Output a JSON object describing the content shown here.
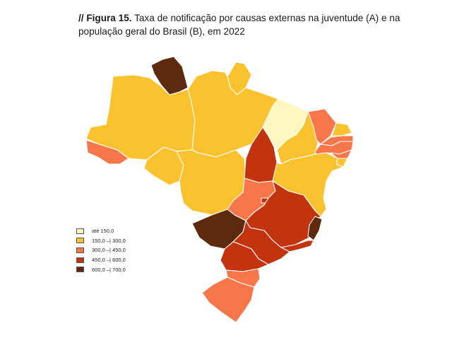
{
  "figure": {
    "label": "// Figura 15.",
    "title": "Taxa de notificação por causas externas na juventude (A) e na população geral do Brasil (B), em 2022"
  },
  "legend": [
    {
      "label": "até 150,0",
      "color": "#fff7bf"
    },
    {
      "label": "150,0 –| 300,0",
      "color": "#f9c22e"
    },
    {
      "label": "300,0 –| 450,0",
      "color": "#f7774a"
    },
    {
      "label": "450,0 –| 600,0",
      "color": "#c3330e"
    },
    {
      "label": "600,0 –| 700,0",
      "color": "#5e2a0e"
    }
  ],
  "states": [
    {
      "name": "AM",
      "class": "150,0 –| 300,0"
    },
    {
      "name": "RR",
      "class": "600,0 –| 700,0"
    },
    {
      "name": "AP",
      "class": "150,0 –| 300,0"
    },
    {
      "name": "PA",
      "class": "150,0 –| 300,0"
    },
    {
      "name": "AC",
      "class": "300,0 –| 450,0"
    },
    {
      "name": "RO",
      "class": "150,0 –| 300,0"
    },
    {
      "name": "MT",
      "class": "150,0 –| 300,0"
    },
    {
      "name": "MA",
      "class": "até 150,0"
    },
    {
      "name": "TO",
      "class": "450,0 –| 600,0"
    },
    {
      "name": "PI",
      "class": "150,0 –| 300,0"
    },
    {
      "name": "CE",
      "class": "300,0 –| 450,0"
    },
    {
      "name": "RN",
      "class": "150,0 –| 300,0"
    },
    {
      "name": "PB",
      "class": "300,0 –| 450,0"
    },
    {
      "name": "PE",
      "class": "300,0 –| 450,0"
    },
    {
      "name": "AL",
      "class": "300,0 –| 450,0"
    },
    {
      "name": "SE",
      "class": "150,0 –| 300,0"
    },
    {
      "name": "BA",
      "class": "150,0 –| 300,0"
    },
    {
      "name": "GO",
      "class": "300,0 –| 450,0"
    },
    {
      "name": "DF",
      "class": "450,0 –| 600,0"
    },
    {
      "name": "MG",
      "class": "450,0 –| 600,0"
    },
    {
      "name": "ES",
      "class": "600,0 –| 700,0"
    },
    {
      "name": "RJ",
      "class": "450,0 –| 600,0"
    },
    {
      "name": "MS",
      "class": "600,0 –| 700,0"
    },
    {
      "name": "SP",
      "class": "450,0 –| 600,0"
    },
    {
      "name": "PR",
      "class": "450,0 –| 600,0"
    },
    {
      "name": "SC",
      "class": "300,0 –| 450,0"
    },
    {
      "name": "RS",
      "class": "300,0 –| 450,0"
    }
  ]
}
